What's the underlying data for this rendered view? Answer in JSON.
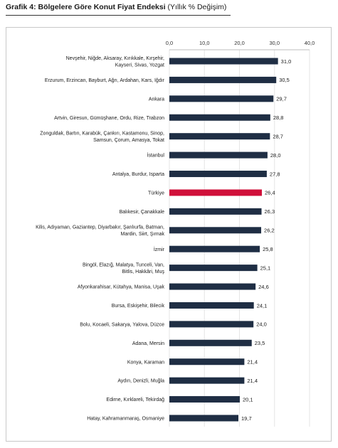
{
  "header": {
    "title_bold": "Grafik 4: Bölgelere Göre Konut Fiyat Endeksi",
    "title_normal": " (Yıllık % Değişim)"
  },
  "colors": {
    "bar": "#1f2e44",
    "highlight": "#d0103a",
    "grid": "#e6e6e6",
    "frame": "#c8c8c8"
  },
  "chart_data": {
    "type": "bar",
    "orientation": "horizontal",
    "title": "Grafik 4: Bölgelere Göre Konut Fiyat Endeksi (Yıllık % Değişim)",
    "xlim": [
      0,
      40
    ],
    "ticks": [
      0,
      10,
      20,
      30,
      40
    ],
    "tick_labels": [
      "0,0",
      "10,0",
      "20,0",
      "30,0",
      "40,0"
    ],
    "axis_position": "top",
    "grid": true,
    "highlight_category": "Türkiye",
    "categories": [
      [
        "Nevşehir, Niğde, Aksaray, Kırıkkale, Kırşehir,",
        "Kayseri, Sivas, Yozgat"
      ],
      [
        "Erzurum, Erzincan, Bayburt, Ağrı, Ardahan, Kars, Iğdır"
      ],
      [
        "Ankara"
      ],
      [
        "Artvin, Giresun, Gümüşhane, Ordu, Rize, Trabzon"
      ],
      [
        "Zonguldak, Bartın, Karabük, Çankırı, Kastamonu, Sinop,",
        "Samsun, Çorum, Amasya, Tokat"
      ],
      [
        "İstanbul"
      ],
      [
        "Antalya, Burdur, Isparta"
      ],
      [
        "Türkiye"
      ],
      [
        "Balıkesir, Çanakkale"
      ],
      [
        "Kilis, Adıyaman, Gaziantep, Diyarbakır, Şanlıurfa, Batman,",
        "Mardin, Siirt, Şırnak"
      ],
      [
        "İzmir"
      ],
      [
        "Bingöl, Elazığ, Malatya, Tunceli, Van,",
        "Bitlis, Hakkâri, Muş"
      ],
      [
        "Afyonkarahisar, Kütahya, Manisa, Uşak"
      ],
      [
        "Bursa, Eskişehir, Bilecik"
      ],
      [
        "Bolu, Kocaeli, Sakarya, Yalova, Düzce"
      ],
      [
        "Adana, Mersin"
      ],
      [
        "Konya, Karaman"
      ],
      [
        "Aydın, Denizli, Muğla"
      ],
      [
        "Edirne, Kırklareli, Tekirdağ"
      ],
      [
        "Hatay, Kahramanmaraş, Osmaniye"
      ]
    ],
    "values": [
      31.0,
      30.5,
      29.7,
      28.8,
      28.7,
      28.0,
      27.8,
      26.4,
      26.3,
      26.2,
      25.8,
      25.1,
      24.6,
      24.1,
      24.0,
      23.5,
      21.4,
      21.4,
      20.1,
      19.7
    ],
    "value_labels": [
      "31,0",
      "30,5",
      "29,7",
      "28,8",
      "28,7",
      "28,0",
      "27,8",
      "26,4",
      "26,3",
      "26,2",
      "25,8",
      "25,1",
      "24,6",
      "24,1",
      "24,0",
      "23,5",
      "21,4",
      "21,4",
      "20,1",
      "19,7"
    ]
  }
}
